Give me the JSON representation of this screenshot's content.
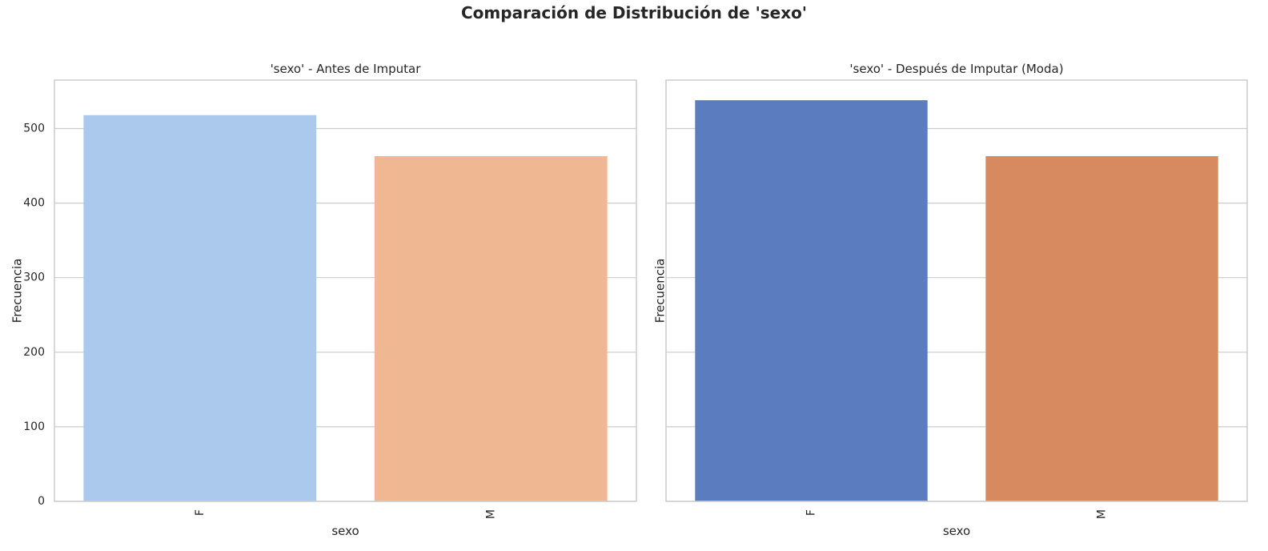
{
  "suptitle": "Comparación de Distribución de 'sexo'",
  "chart_data": [
    {
      "type": "bar",
      "title": "'sexo' - Antes de Imputar",
      "xlabel": "sexo",
      "ylabel": "Frecuencia",
      "categories": [
        "F",
        "M"
      ],
      "values": [
        518,
        463
      ],
      "colors": [
        "#abc9ec",
        "#f0b793"
      ],
      "ylim": [
        0,
        565
      ],
      "yticks": [
        0,
        100,
        200,
        300,
        400,
        500
      ],
      "grid": true,
      "xtick_rotation": 90
    },
    {
      "type": "bar",
      "title": "'sexo' - Después de Imputar (Moda)",
      "xlabel": "sexo",
      "ylabel": "Frecuencia",
      "categories": [
        "F",
        "M"
      ],
      "values": [
        538,
        463
      ],
      "colors": [
        "#5b7cbe",
        "#d78a5f"
      ],
      "ylim": [
        0,
        565
      ],
      "yticks": [
        0,
        100,
        200,
        300,
        400,
        500
      ],
      "grid": true,
      "xtick_rotation": 90
    }
  ]
}
